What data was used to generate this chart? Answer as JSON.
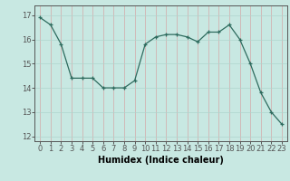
{
  "x": [
    0,
    1,
    2,
    3,
    4,
    5,
    6,
    7,
    8,
    9,
    10,
    11,
    12,
    13,
    14,
    15,
    16,
    17,
    18,
    19,
    20,
    21,
    22,
    23
  ],
  "y": [
    16.9,
    16.6,
    15.8,
    14.4,
    14.4,
    14.4,
    14.0,
    14.0,
    14.0,
    14.3,
    15.8,
    16.1,
    16.2,
    16.2,
    16.1,
    15.9,
    16.3,
    16.3,
    16.6,
    16.0,
    15.0,
    13.8,
    13.0,
    12.5
  ],
  "line_color": "#2e6b5e",
  "marker": "+",
  "marker_size": 3,
  "bg_color": "#c8e8e2",
  "grid_color": "#afd4cd",
  "axis_color": "#555555",
  "xlabel": "Humidex (Indice chaleur)",
  "ylim": [
    11.8,
    17.4
  ],
  "xlim": [
    -0.5,
    23.5
  ],
  "yticks": [
    12,
    13,
    14,
    15,
    16,
    17
  ],
  "xticks": [
    0,
    1,
    2,
    3,
    4,
    5,
    6,
    7,
    8,
    9,
    10,
    11,
    12,
    13,
    14,
    15,
    16,
    17,
    18,
    19,
    20,
    21,
    22,
    23
  ],
  "tick_font_size": 6,
  "label_font_size": 7
}
